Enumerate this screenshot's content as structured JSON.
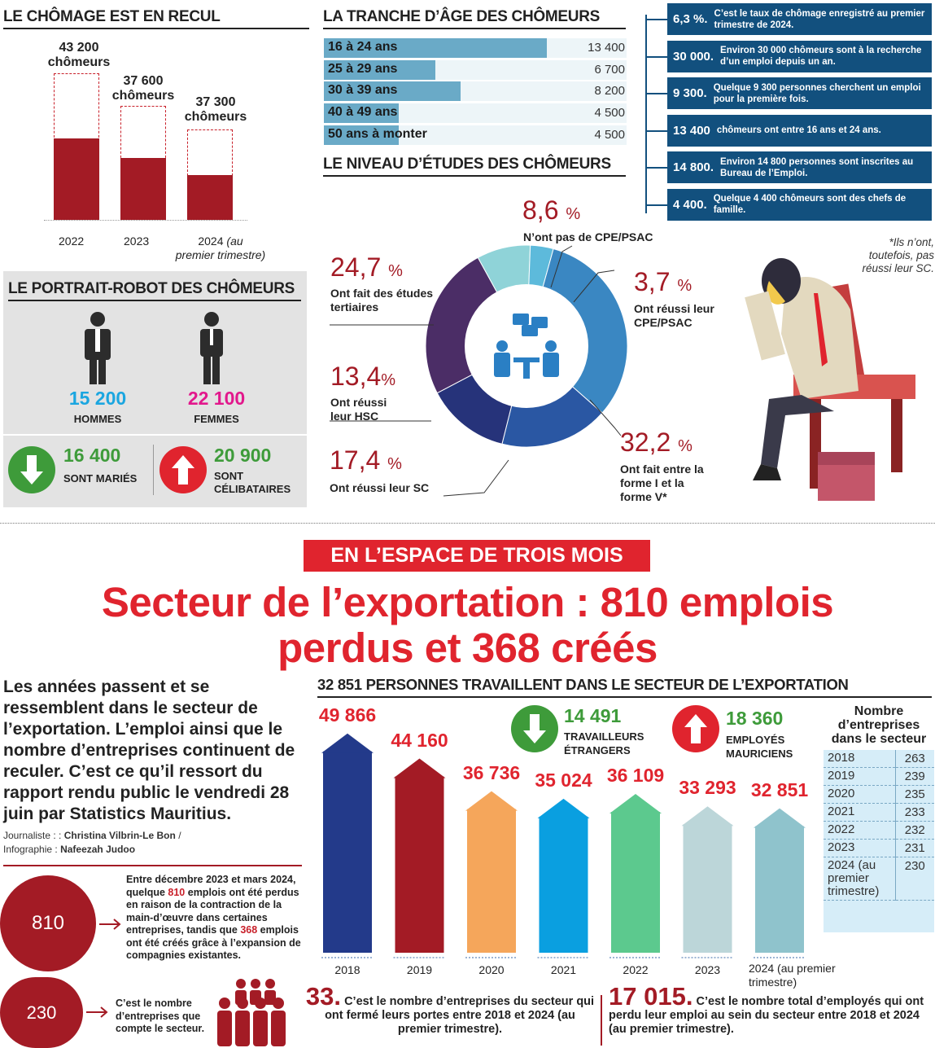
{
  "chomage": {
    "title": "LE CHÔMAGE EST EN RECUL",
    "chart_data": {
      "type": "bar",
      "title": "LE CHÔMAGE EST EN RECUL",
      "categories": [
        "2022",
        "2023",
        "2024 (au premier trimestre)"
      ],
      "values": [
        43200,
        37600,
        37300
      ],
      "labels": [
        "43 200 chômeurs",
        "37 600 chômeurs",
        "37 300 chômeurs"
      ]
    },
    "v1": "43 200",
    "v2": "37 600",
    "v3": "37 300",
    "unit": "chômeurs",
    "y1": "2022",
    "y2": "2023",
    "y3a": "2024",
    "y3b": "(au",
    "y3c": "premier trimestre)"
  },
  "age": {
    "title": "LA TRANCHE D’ÂGE DES CHÔMEURS",
    "chart_data": {
      "type": "bar",
      "categories": [
        "16 à 24 ans",
        "25 à 29 ans",
        "30 à 39 ans",
        "40 à 49 ans",
        "50 ans à monter"
      ],
      "values": [
        13400,
        6700,
        8200,
        4500,
        4500
      ]
    },
    "rows": [
      {
        "label": "16 à 24 ans",
        "value": "13 400"
      },
      {
        "label": "25 à 29 ans",
        "value": "6 700"
      },
      {
        "label": "30 à 39 ans",
        "value": "8 200"
      },
      {
        "label": "40 à 49 ans",
        "value": "4 500"
      },
      {
        "label": "50 ans à monter",
        "value": "4 500"
      }
    ]
  },
  "facts": [
    {
      "num": "6,3 %.",
      "text": "C’est le taux de chômage enregistré au premier trimestre de 2024."
    },
    {
      "num": "30 000.",
      "text": "Environ 30 000 chômeurs sont à la recherche d’un emploi depuis un an."
    },
    {
      "num": "9 300.",
      "text": "Quelque 9 300 personnes cherchent un emploi pour la première fois."
    },
    {
      "num": "13 400",
      "text": "chômeurs ont entre 16 ans et 24 ans."
    },
    {
      "num": "14 800.",
      "text": "Environ 14 800 personnes sont inscrites au Bureau de l’Emploi."
    },
    {
      "num": "4 400.",
      "text": "Quelque 4 400 chômeurs sont des chefs de famille."
    }
  ],
  "etudes": {
    "title": "LE NIVEAU D’ÉTUDES DES CHÔMEURS",
    "chart_data": {
      "type": "pie",
      "labels": [
        "N’ont pas de CPE/PSAC",
        "Ont réussi leur CPE/PSAC",
        "Ont fait entre la forme I et la forme V*",
        "Ont réussi leur SC",
        "Ont réussi leur HSC",
        "Ont fait des études tertiaires"
      ],
      "values": [
        8.6,
        3.7,
        32.2,
        17.4,
        13.4,
        24.7
      ],
      "colors": [
        "#8fd3d8",
        "#5dbadb",
        "#3a87c2",
        "#2a57a3",
        "#26337a",
        "#4b2d66"
      ]
    },
    "p1": "8,6",
    "p1l": "N’ont pas de CPE/PSAC",
    "p2": "3,7",
    "p2l1": "Ont réussi leur",
    "p2l2": "CPE/PSAC",
    "p3": "32,2",
    "p3l1": "Ont fait entre la",
    "p3l2": "forme I et la",
    "p3l3": "forme V*",
    "p4": "17,4",
    "p4l": "Ont réussi leur SC",
    "p5": "13,4",
    "p5l1": "Ont réussi",
    "p5l2": "leur HSC",
    "p6": "24,7",
    "p6l1": "Ont fait des études",
    "p6l2": "tertiaires",
    "pc": "%",
    "note1": "*Ils n’ont,",
    "note2": "toutefois, pas",
    "note3": "réussi leur SC."
  },
  "portrait": {
    "title": "LE PORTRAIT-ROBOT DES CHÔMEURS",
    "hommes_n": "15 200",
    "hommes": "HOMMES",
    "femmes_n": "22 100",
    "femmes": "FEMMES",
    "maries_n": "16 400",
    "maries": "SONT MARIÉS",
    "celib_n": "20 900",
    "celib1": "SONT",
    "celib2": "CÉLIBATAIRES"
  },
  "headline": {
    "kicker": "EN L’ESPACE DE TROIS MOIS",
    "l1": "Secteur de l’exportation : 810 emplois",
    "l2": "perdus et 368 créés"
  },
  "intro": {
    "text": "Les années passent et se ressemblent dans le secteur de l’exportation. L’emploi ainsi que le nombre d’entreprises continuent de reculer. C’est ce qu’il ressort du rapport rendu public le vendredi 28 juin par Statistics Mauritius.",
    "j_lbl": "Journaliste : :",
    "j_name": "Christina Vilbrin-Le Bon",
    "slash": "/",
    "i_lbl": "Infographie :",
    "i_name": "Nafeezah Judoo"
  },
  "c810": {
    "num": "810",
    "t1": "Entre décembre 2023 et mars 2024, quelque ",
    "n1": "810",
    "t2": " emplois ont été perdus en raison de la contraction de la main-d’œuvre dans certaines entreprises, tandis que ",
    "n2": "368",
    "t3": " emplois ont été créés grâce à l’expansion de compagnies existantes."
  },
  "c230": {
    "num": "230",
    "text": "C’est le nombre d’entreprises que compte le secteur."
  },
  "export": {
    "title": "32 851 PERSONNES TRAVAILLENT DANS LE SECTEUR DE L’EXPORTATION",
    "chart_data": {
      "type": "bar",
      "categories": [
        "2018",
        "2019",
        "2020",
        "2021",
        "2022",
        "2023",
        "2024 (au premier trimestre)"
      ],
      "values": [
        49866,
        44160,
        36736,
        35024,
        36109,
        33293,
        32851
      ],
      "colors": [
        "#233a8a",
        "#a31b25",
        "#f5a65b",
        "#0a9fe0",
        "#5cc98e",
        "#bcd6d9",
        "#8fc3cc"
      ]
    },
    "labels": [
      "49 866",
      "44 160",
      "36 736",
      "35 024",
      "36 109",
      "33 293",
      "32 851"
    ],
    "years": [
      "2018",
      "2019",
      "2020",
      "2021",
      "2022",
      "2023"
    ],
    "y7a": "2024 (au premier",
    "y7b": "trimestre)",
    "etr_n": "14 491",
    "etr1": "TRAVAILLEURS",
    "etr2": "ÉTRANGERS",
    "mau_n": "18 360",
    "mau1": "EMPLOYÉS",
    "mau2": "MAURICIENS"
  },
  "entreprises": {
    "title1": "Nombre",
    "title2": "d’entreprises",
    "title3": "dans le secteur",
    "rows": [
      [
        "2018",
        "263"
      ],
      [
        "2019",
        "239"
      ],
      [
        "2020",
        "235"
      ],
      [
        "2021",
        "233"
      ],
      [
        "2022",
        "232"
      ],
      [
        "2023",
        "231"
      ],
      [
        "2024 (au premier trimestre)",
        "230"
      ]
    ]
  },
  "b33": {
    "num": "33.",
    "text": "C’est le nombre d’entreprises du secteur qui ont fermé leurs portes entre 2018 et 2024 (au premier trimestre)."
  },
  "b17": {
    "num": "17 015.",
    "text": "C’est le nombre total d’employés qui ont perdu leur emploi au sein du secteur entre 2018 et 2024 (au premier trimestre)."
  }
}
